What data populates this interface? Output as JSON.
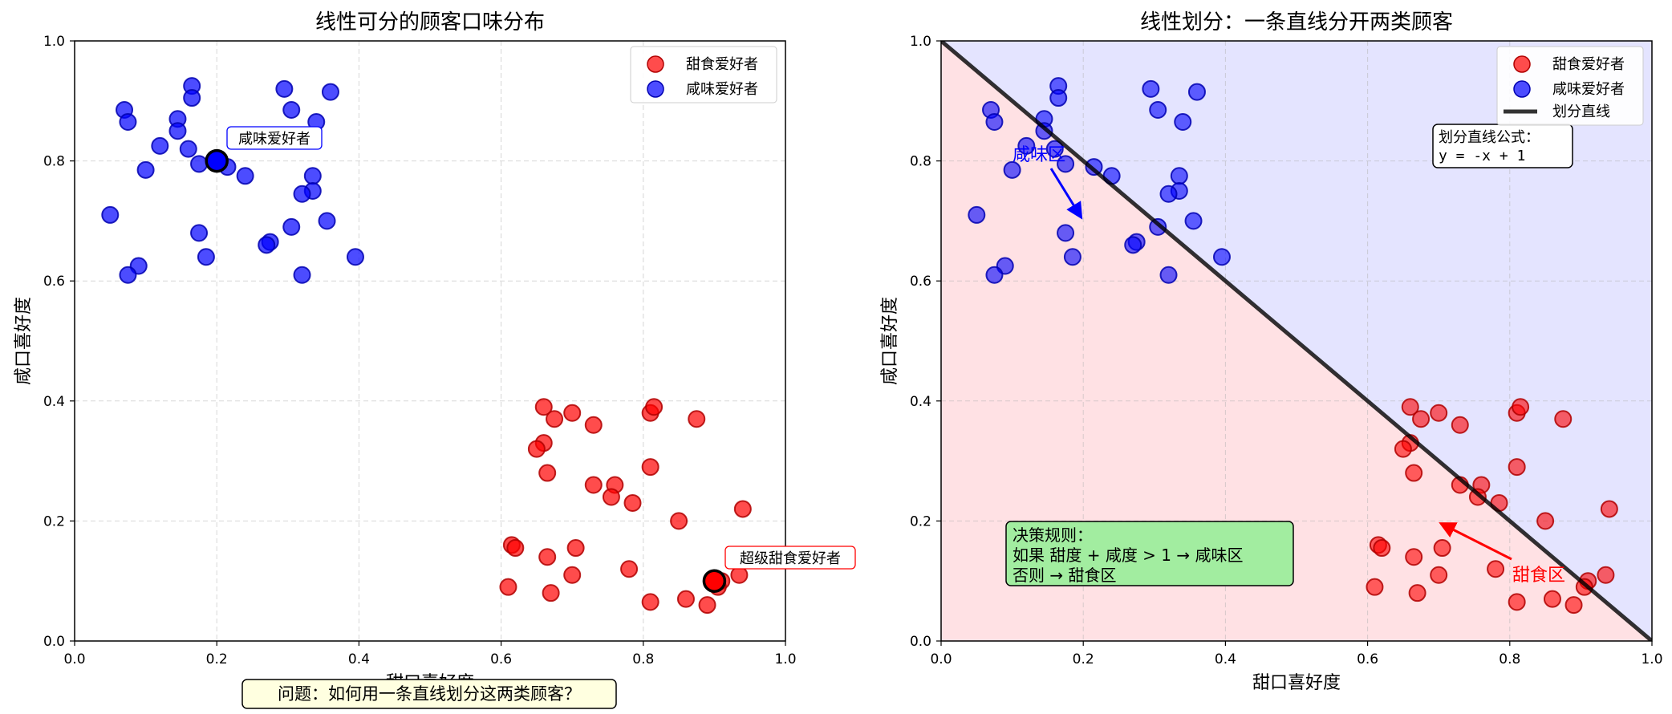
{
  "colors": {
    "sweet": "#ff0000",
    "salty": "#0000ff",
    "sweet_region": "#ffe1e4",
    "salty_region": "#e4e4ff",
    "line": "#000000",
    "formula_box": "#ffffff",
    "rule_box": "#a2eda0",
    "question_box": "#ffffe0"
  },
  "chart_data": [
    {
      "type": "scatter",
      "title": "线性可分的顾客口味分布",
      "xlabel": "甜口喜好度",
      "ylabel": "咸口喜好度",
      "xlim": [
        0,
        1
      ],
      "ylim": [
        0,
        1
      ],
      "xticks": [
        "0.0",
        "0.2",
        "0.4",
        "0.6",
        "0.8",
        "1.0"
      ],
      "yticks": [
        "0.0",
        "0.2",
        "0.4",
        "0.6",
        "0.8",
        "1.0"
      ],
      "grid": true,
      "legend_position": "top-right",
      "series": [
        {
          "name": "甜食爱好者",
          "color": "#ff0000",
          "points": [
            [
              0.66,
              0.39
            ],
            [
              0.7,
              0.38
            ],
            [
              0.81,
              0.38
            ],
            [
              0.815,
              0.39
            ],
            [
              0.875,
              0.37
            ],
            [
              0.675,
              0.37
            ],
            [
              0.73,
              0.36
            ],
            [
              0.66,
              0.33
            ],
            [
              0.65,
              0.32
            ],
            [
              0.81,
              0.29
            ],
            [
              0.665,
              0.28
            ],
            [
              0.73,
              0.26
            ],
            [
              0.76,
              0.26
            ],
            [
              0.755,
              0.24
            ],
            [
              0.785,
              0.23
            ],
            [
              0.94,
              0.22
            ],
            [
              0.85,
              0.2
            ],
            [
              0.615,
              0.16
            ],
            [
              0.62,
              0.155
            ],
            [
              0.705,
              0.155
            ],
            [
              0.665,
              0.14
            ],
            [
              0.78,
              0.12
            ],
            [
              0.7,
              0.11
            ],
            [
              0.935,
              0.11
            ],
            [
              0.91,
              0.1
            ],
            [
              0.61,
              0.09
            ],
            [
              0.905,
              0.09
            ],
            [
              0.67,
              0.08
            ],
            [
              0.86,
              0.07
            ],
            [
              0.81,
              0.065
            ],
            [
              0.89,
              0.06
            ]
          ]
        },
        {
          "name": "咸味爱好者",
          "color": "#0000ff",
          "points": [
            [
              0.165,
              0.925
            ],
            [
              0.295,
              0.92
            ],
            [
              0.36,
              0.915
            ],
            [
              0.165,
              0.905
            ],
            [
              0.07,
              0.885
            ],
            [
              0.305,
              0.885
            ],
            [
              0.145,
              0.87
            ],
            [
              0.075,
              0.865
            ],
            [
              0.34,
              0.865
            ],
            [
              0.145,
              0.85
            ],
            [
              0.12,
              0.825
            ],
            [
              0.16,
              0.82
            ],
            [
              0.175,
              0.795
            ],
            [
              0.215,
              0.79
            ],
            [
              0.1,
              0.785
            ],
            [
              0.24,
              0.775
            ],
            [
              0.335,
              0.775
            ],
            [
              0.335,
              0.75
            ],
            [
              0.32,
              0.745
            ],
            [
              0.05,
              0.71
            ],
            [
              0.355,
              0.7
            ],
            [
              0.305,
              0.69
            ],
            [
              0.175,
              0.68
            ],
            [
              0.275,
              0.665
            ],
            [
              0.27,
              0.66
            ],
            [
              0.185,
              0.64
            ],
            [
              0.395,
              0.64
            ],
            [
              0.09,
              0.625
            ],
            [
              0.32,
              0.61
            ],
            [
              0.075,
              0.61
            ]
          ]
        }
      ],
      "highlights": [
        {
          "label": "咸味爱好者",
          "x": 0.2,
          "y": 0.8,
          "series": "咸味爱好者"
        },
        {
          "label": "超级甜食爱好者",
          "x": 0.9,
          "y": 0.1,
          "series": "甜食爱好者"
        }
      ],
      "annotation": "问题：如何用一条直线划分这两类顾客？"
    },
    {
      "type": "scatter",
      "title": "线性划分：一条直线分开两类顾客",
      "xlabel": "甜口喜好度",
      "ylabel": "咸口喜好度",
      "xlim": [
        0,
        1
      ],
      "ylim": [
        0,
        1
      ],
      "xticks": [
        "0.0",
        "0.2",
        "0.4",
        "0.6",
        "0.8",
        "1.0"
      ],
      "yticks": [
        "0.0",
        "0.2",
        "0.4",
        "0.6",
        "0.8",
        "1.0"
      ],
      "grid": true,
      "legend_position": "top-right",
      "series_ref": "same points as first chart",
      "divider": {
        "name": "划分直线",
        "slope": -1,
        "intercept": 1
      },
      "regions": [
        {
          "label": "咸味区",
          "text_at": [
            0.14,
            0.81
          ],
          "arrow_to": [
            0.2,
            0.7
          ],
          "color": "#0000ff"
        },
        {
          "label": "甜食区",
          "text_at": [
            0.84,
            0.11
          ],
          "arrow_to": [
            0.7,
            0.2
          ],
          "color": "#ff0000"
        }
      ],
      "formula": [
        "划分直线公式：",
        "y = -x + 1"
      ],
      "decision_rule": [
        "决策规则：",
        "如果 甜度 + 咸度 > 1 → 咸味区",
        "否则 → 甜食区"
      ]
    }
  ]
}
